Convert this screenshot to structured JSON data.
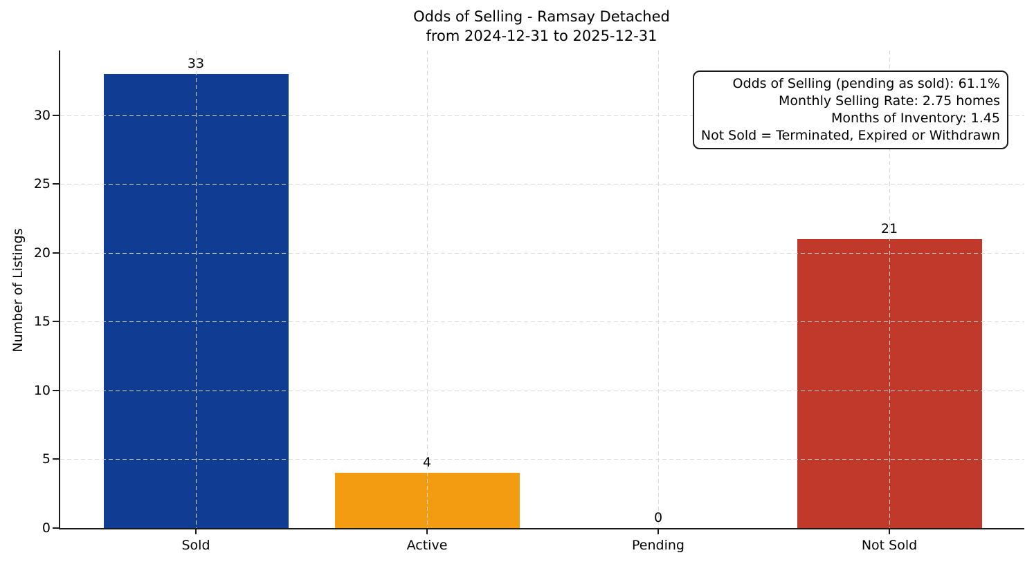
{
  "chart_data": {
    "type": "bar",
    "title": "Odds of Selling - Ramsay Detached from 2024-12-31 to 2025-12-31",
    "title_line1": "Odds of Selling - Ramsay Detached",
    "title_line2": "from 2024-12-31 to 2025-12-31",
    "categories": [
      "Sold",
      "Active",
      "Pending",
      "Not Sold"
    ],
    "values": [
      33,
      4,
      0,
      21
    ],
    "value_labels": [
      "33",
      "4",
      "0",
      "21"
    ],
    "bar_colors": [
      "#113c94",
      "#f39c12",
      null,
      "#c0392b"
    ],
    "xlabel": "",
    "ylabel": "Number of Listings",
    "yticks": [
      0,
      5,
      10,
      15,
      20,
      25,
      30
    ],
    "ylim": [
      0,
      34.7
    ],
    "grid": "dashed, both axes, drawn over bars",
    "legend": "none",
    "colors": {
      "sold_bar": "#113c94",
      "active_bar": "#f39c12",
      "not_sold_bar": "#c0392b",
      "gridline": "#d9d9d9",
      "axis": "#1a1a1a",
      "background": "#ffffff"
    },
    "annotation": {
      "lines": [
        "Odds of Selling (pending as sold): 61.1%",
        "Monthly Selling Rate: 2.75 homes",
        "Months of Inventory: 1.45",
        "Not Sold = Terminated, Expired or Withdrawn"
      ]
    }
  }
}
